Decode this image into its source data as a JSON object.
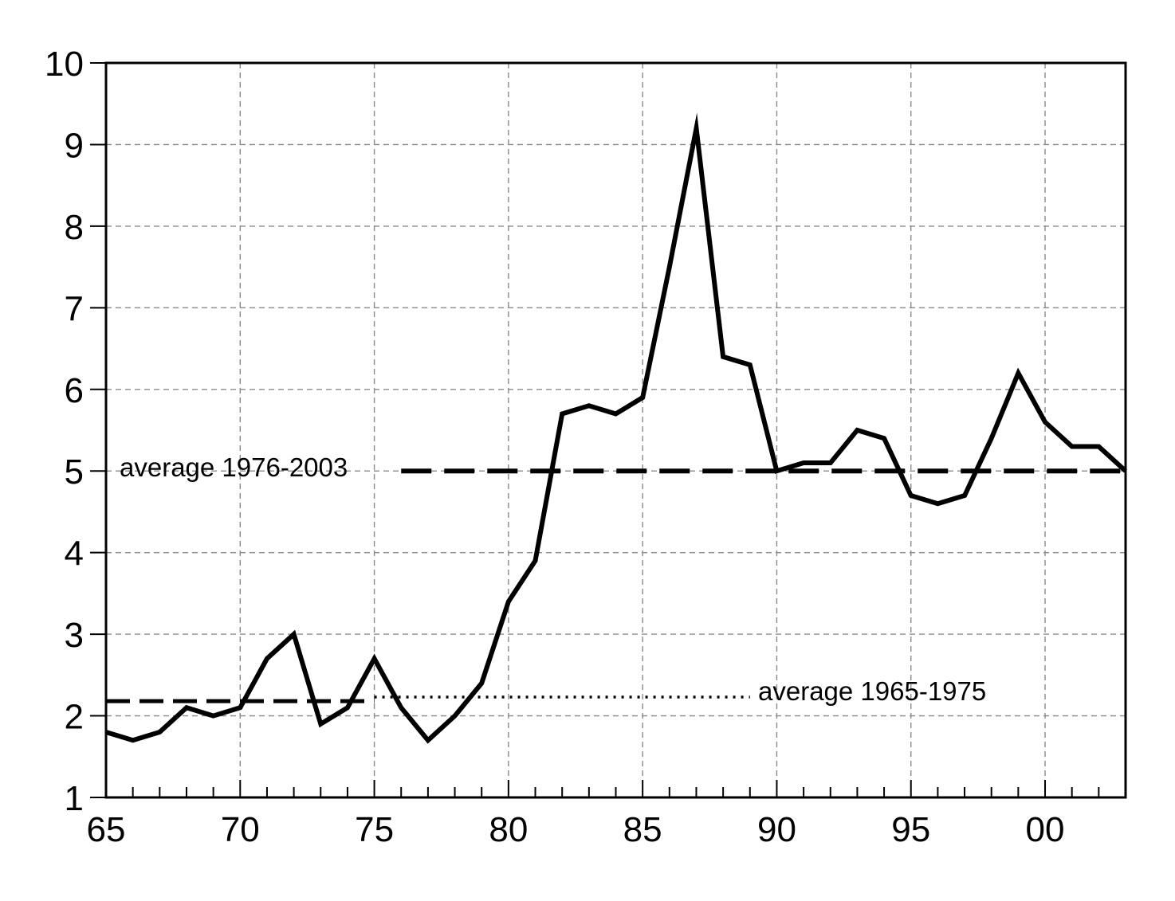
{
  "chart_data": {
    "type": "line",
    "title": "",
    "xlabel": "",
    "ylabel": "",
    "x": [
      1965,
      1966,
      1967,
      1968,
      1969,
      1970,
      1971,
      1972,
      1973,
      1974,
      1975,
      1976,
      1977,
      1978,
      1979,
      1980,
      1981,
      1982,
      1983,
      1984,
      1985,
      1986,
      1987,
      1988,
      1989,
      1990,
      1991,
      1992,
      1993,
      1994,
      1995,
      1996,
      1997,
      1998,
      1999,
      2000,
      2001,
      2002,
      2003
    ],
    "series": [
      {
        "values": [
          1.8,
          1.7,
          1.8,
          2.1,
          2.0,
          2.1,
          2.7,
          3.0,
          1.9,
          2.1,
          2.7,
          2.1,
          1.7,
          2.0,
          2.4,
          3.4,
          3.9,
          5.7,
          5.8,
          5.7,
          5.9,
          7.5,
          9.2,
          6.4,
          6.3,
          5.0,
          5.1,
          5.1,
          5.5,
          5.4,
          4.7,
          4.6,
          4.7,
          5.4,
          6.2,
          5.6,
          5.3,
          5.3,
          5.0
        ],
        "color": "#000000"
      }
    ],
    "reference_lines": [
      {
        "label": "average 1976-2003",
        "value": 5.0,
        "x_start": 1976,
        "x_end": 2003,
        "style": "long-dash"
      },
      {
        "label": "average 1965-1975",
        "value": 2.18,
        "x_start": 1965,
        "x_end": 1975,
        "style": "dash"
      },
      {
        "label": "",
        "value": 2.23,
        "x_start": 1975,
        "x_end": 1989,
        "style": "dotted"
      }
    ],
    "xlim": [
      1965,
      2003
    ],
    "ylim": [
      1,
      10
    ],
    "x_tick_values": [
      1965,
      1970,
      1975,
      1980,
      1985,
      1990,
      1995,
      2000
    ],
    "x_tick_labels": [
      "65",
      "70",
      "75",
      "80",
      "85",
      "90",
      "95",
      "00"
    ],
    "y_tick_values": [
      1,
      2,
      3,
      4,
      5,
      6,
      7,
      8,
      9,
      10
    ],
    "y_tick_labels": [
      "1",
      "2",
      "3",
      "4",
      "5",
      "6",
      "7",
      "8",
      "9",
      "10"
    ],
    "grid": true,
    "legend": "none"
  }
}
